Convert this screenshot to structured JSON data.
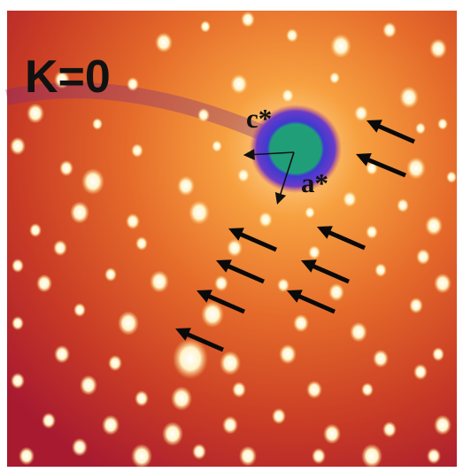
{
  "panel_label": "K=0",
  "axis_labels": {
    "c_star": "c*",
    "a_star": "a*"
  },
  "colors": {
    "background_red": "#b0202c",
    "halo_orange": "#f08030",
    "spot_white": "#fffbe8",
    "beamstop_blue": "#3e3ad0",
    "center_green": "#1f9e78",
    "arrow_black": "#0a0a0a",
    "border": "#ffffff"
  },
  "arrows_count": 9
}
